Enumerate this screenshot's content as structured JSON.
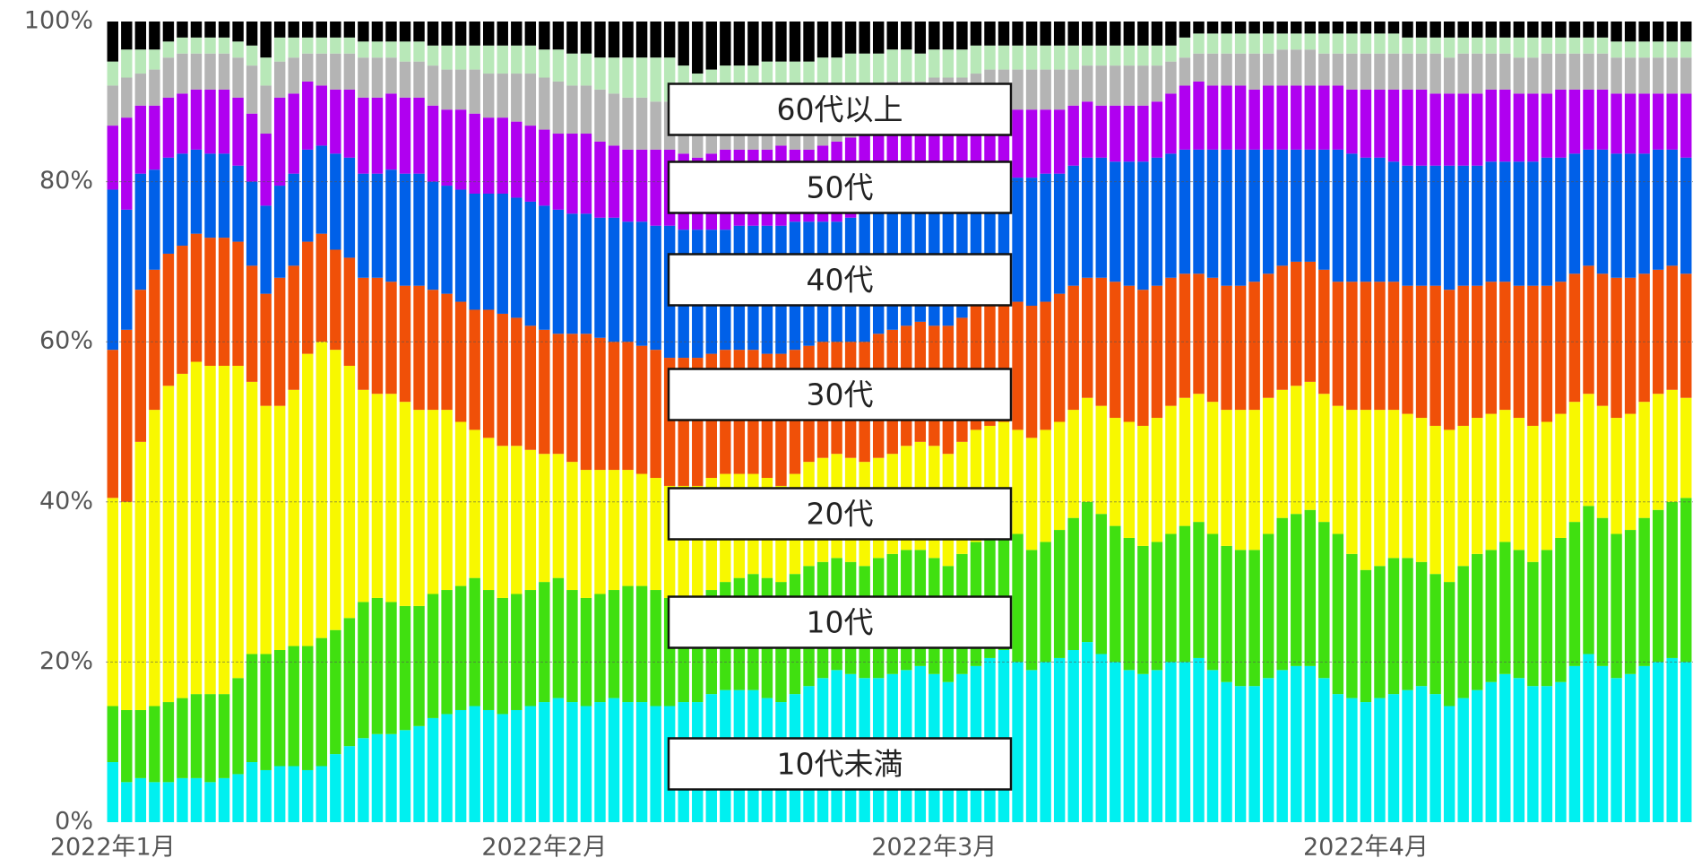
{
  "chart_data": {
    "type": "stacked_bar_100",
    "categories": [
      "2022年1月",
      null,
      null,
      null,
      null,
      null,
      null,
      null,
      null,
      null,
      null,
      null,
      null,
      null,
      null,
      null,
      null,
      null,
      null,
      null,
      null,
      null,
      null,
      null,
      null,
      null,
      null,
      null,
      null,
      null,
      null,
      "2022年2月",
      null,
      null,
      null,
      null,
      null,
      null,
      null,
      null,
      null,
      null,
      null,
      null,
      null,
      null,
      null,
      null,
      null,
      null,
      null,
      null,
      null,
      null,
      null,
      null,
      null,
      null,
      null,
      "2022年3月",
      null,
      null,
      null,
      null,
      null,
      null,
      null,
      null,
      null,
      null,
      null,
      null,
      null,
      null,
      null,
      null,
      null,
      null,
      null,
      null,
      null,
      null,
      null,
      null,
      null,
      null,
      null,
      null,
      null,
      null,
      "2022年4月",
      null,
      null,
      null,
      null,
      null,
      null,
      null,
      null,
      null,
      null,
      null,
      null,
      null,
      null,
      null,
      null,
      null,
      null,
      null,
      null,
      null,
      null,
      null
    ],
    "ylim": [
      0,
      100
    ],
    "yticks": [
      {
        "value": 0,
        "label": "0%"
      },
      {
        "value": 20,
        "label": "20%"
      },
      {
        "value": 40,
        "label": "40%"
      },
      {
        "value": 60,
        "label": "60%"
      },
      {
        "value": 80,
        "label": "80%"
      },
      {
        "value": 100,
        "label": "100%"
      }
    ],
    "grid": true,
    "series": [
      {
        "name": "10代未満",
        "color": "#00f0f0",
        "values": [
          7.5,
          5,
          5.5,
          5,
          5,
          5.5,
          5.5,
          5,
          5.5,
          6,
          7.5,
          6.5,
          7,
          7,
          6.5,
          7,
          8.5,
          9.5,
          10.5,
          11,
          11,
          11.5,
          12,
          13,
          13.5,
          14,
          14.5,
          14,
          13.5,
          14,
          14.5,
          15,
          15.5,
          15,
          14.5,
          15,
          15.5,
          15,
          15,
          14.5,
          14.5,
          15,
          15,
          16,
          16.5,
          16.5,
          16.5,
          15.5,
          15,
          16,
          17,
          18,
          19,
          18.5,
          18,
          18,
          18.5,
          19,
          19.5,
          18.5,
          17.5,
          18.5,
          19.5,
          20.5,
          21.5,
          20,
          19,
          20,
          20.5,
          21.5,
          22.5,
          21,
          20,
          19,
          18.5,
          19,
          20,
          20,
          20.5,
          19,
          17.5,
          17,
          17,
          18,
          19,
          19.5,
          19.5,
          18,
          16,
          15.5,
          15,
          15.5,
          16,
          16.5,
          17,
          16,
          14.5,
          15.5,
          16.5,
          17.5,
          18.5,
          18,
          17,
          17,
          17.5,
          19.5,
          21,
          19.5,
          18,
          18.5,
          19.5,
          20,
          20.5,
          20
        ]
      },
      {
        "name": "10代",
        "color": "#40e010",
        "values": [
          7,
          9,
          8.5,
          9.5,
          10,
          10,
          10.5,
          11,
          10.5,
          12,
          13.5,
          14.5,
          14.5,
          15,
          15.5,
          16,
          15.5,
          16,
          17,
          17,
          16.5,
          15.5,
          15,
          15.5,
          15.5,
          15.5,
          16,
          15,
          14.5,
          14.5,
          14.5,
          15,
          15,
          14,
          13.5,
          13.5,
          13.5,
          14.5,
          14.5,
          14.5,
          13.5,
          12.5,
          12,
          13,
          13.5,
          14,
          14.5,
          15,
          15,
          15,
          15,
          14.5,
          14,
          14,
          14,
          15,
          15,
          15,
          14.5,
          14.5,
          14.5,
          15,
          15.5,
          15.5,
          16,
          16,
          15,
          15,
          16,
          16.5,
          17.5,
          17.5,
          17,
          16.5,
          16,
          16,
          16,
          17,
          17,
          17,
          17,
          17,
          17,
          18,
          19,
          19,
          19.5,
          19.5,
          20,
          18,
          16.5,
          16.5,
          17,
          16.5,
          15.5,
          15,
          15.5,
          16.5,
          17,
          16.5,
          16.5,
          16,
          15.5,
          17,
          18,
          18,
          18.5,
          18.5,
          18,
          18,
          18.5,
          19,
          19.5,
          20.5
        ]
      },
      {
        "name": "20代",
        "color": "#f8f800",
        "values": [
          26,
          26,
          33.5,
          37,
          39.5,
          40.5,
          41.5,
          41,
          41,
          39,
          34,
          31,
          30.5,
          32,
          36.5,
          37,
          35,
          31.5,
          26.5,
          25.5,
          26,
          25.5,
          24.5,
          23,
          22.5,
          20.5,
          18.5,
          19,
          19,
          18.5,
          17.5,
          16,
          15.5,
          16,
          16,
          15.5,
          15,
          14.5,
          14,
          14,
          14,
          14.5,
          15,
          14,
          13.5,
          13,
          12.5,
          12.5,
          12,
          12.5,
          13,
          13,
          13,
          13,
          13,
          12.5,
          12.5,
          13,
          13.5,
          14,
          14,
          14,
          14,
          13.5,
          12.5,
          13,
          14,
          14,
          13.5,
          13.5,
          13,
          13.5,
          13.5,
          14.5,
          15,
          15.5,
          16,
          16,
          16,
          16.5,
          17,
          17.5,
          17.5,
          17,
          16,
          16,
          16,
          16,
          16,
          18,
          20,
          19.5,
          18.5,
          18,
          18,
          18.5,
          19,
          17.5,
          17,
          17,
          16.5,
          16.5,
          17,
          16,
          15.5,
          15,
          14,
          14,
          14.5,
          14.5,
          14.5,
          14.5,
          14,
          12.5
        ]
      },
      {
        "name": "30代",
        "color": "#f05008",
        "values": [
          18.5,
          21.5,
          19,
          17.5,
          16.5,
          16,
          16,
          16,
          16,
          15.5,
          14.5,
          14,
          16,
          15.5,
          14,
          13.5,
          12.5,
          13.5,
          14,
          14.5,
          14,
          14.5,
          15.5,
          15,
          14.5,
          15,
          15,
          16,
          16.5,
          16,
          15.5,
          15.5,
          15,
          16,
          17,
          16.5,
          16,
          16,
          16,
          16,
          16,
          16,
          16,
          15.5,
          15.5,
          15.5,
          15.5,
          15.5,
          16.5,
          15.5,
          14.5,
          14.5,
          14,
          14.5,
          15,
          15.5,
          15.5,
          15,
          15,
          15,
          16,
          15.5,
          15.5,
          15.5,
          15,
          16,
          16.5,
          16,
          16,
          15.5,
          15,
          16,
          17,
          17,
          17,
          16.5,
          16,
          15.5,
          15,
          15.5,
          15.5,
          15.5,
          16,
          15.5,
          15.5,
          15.5,
          15,
          15.5,
          15.5,
          16,
          16,
          16,
          16,
          16,
          16.5,
          17.5,
          17.5,
          17.5,
          16.5,
          16.5,
          16,
          16.5,
          17.5,
          17,
          16.5,
          16,
          16,
          16.5,
          17.5,
          17,
          16,
          15.5,
          15.5,
          15.5
        ]
      },
      {
        "name": "40代",
        "color": "#0060e8",
        "values": [
          20,
          15,
          14.5,
          12.5,
          12,
          11.5,
          10.5,
          10.5,
          10.5,
          9.5,
          10.5,
          11,
          11.5,
          11.5,
          11.5,
          11,
          12,
          12.5,
          13,
          13,
          14,
          14,
          14,
          13.5,
          13.5,
          14,
          14.5,
          14.5,
          15,
          15,
          15.5,
          15.5,
          15.5,
          15,
          15,
          15,
          15.5,
          15,
          15.5,
          15.5,
          16.5,
          16,
          16,
          15.5,
          15,
          15.5,
          15.5,
          16,
          16,
          16,
          15.5,
          15,
          15,
          15.5,
          16,
          16,
          16,
          16,
          15.5,
          16.5,
          17,
          16.5,
          15.5,
          15,
          15.5,
          15.5,
          16,
          16,
          15,
          15,
          15,
          15,
          15,
          15.5,
          16,
          16,
          15.5,
          15.5,
          15.5,
          16,
          17,
          17,
          16.5,
          15.5,
          14.5,
          14,
          14,
          15,
          16.5,
          16,
          15.5,
          15.5,
          15,
          15,
          15,
          15,
          15.5,
          15,
          15,
          15,
          15,
          15.5,
          15.5,
          16,
          15.5,
          15,
          14.5,
          15.5,
          15.5,
          15.5,
          15,
          15,
          14.5,
          14.5
        ]
      },
      {
        "name": "50代",
        "color": "#b000f0",
        "values": [
          8,
          11.5,
          8.5,
          8,
          7.5,
          7.5,
          7.5,
          8,
          8,
          8.5,
          8.5,
          9,
          11,
          10,
          8.5,
          7.5,
          8,
          8.5,
          9.5,
          9.5,
          9.5,
          9.5,
          9.5,
          9.5,
          9.5,
          10,
          10,
          9.5,
          9.5,
          9.5,
          9.5,
          9.5,
          9.5,
          10,
          10,
          9.5,
          9,
          9,
          9,
          9.5,
          9.5,
          9.5,
          9,
          9.5,
          10,
          9.5,
          9.5,
          9.5,
          10,
          9,
          9,
          9.5,
          10,
          10,
          10,
          9.5,
          9,
          8.5,
          8.5,
          8.5,
          8.5,
          8.5,
          8.5,
          9,
          8.5,
          8.5,
          8.5,
          8,
          8,
          7.5,
          7,
          6.5,
          7,
          7,
          7,
          7,
          7.5,
          8,
          8.5,
          8,
          8,
          8,
          7.5,
          8,
          8,
          8,
          8,
          8,
          8,
          8,
          8.5,
          8.5,
          9,
          9.5,
          9.5,
          9,
          9,
          9,
          9,
          9,
          9,
          8.5,
          8.5,
          8,
          8.5,
          8,
          7.5,
          7.5,
          7.5,
          7.5,
          7.5,
          7,
          7,
          8
        ]
      },
      {
        "name": "60代以上",
        "color": "#b4b4b4",
        "values": [
          5,
          5,
          4,
          4.5,
          5,
          5,
          4.5,
          4.5,
          4.5,
          5,
          6,
          6,
          4.5,
          4.5,
          3.5,
          4,
          4.5,
          4.5,
          5,
          5,
          4.5,
          4.5,
          4.5,
          5,
          5,
          5,
          5.5,
          5.5,
          5.5,
          6,
          6.5,
          6.5,
          6.5,
          6,
          6,
          6.5,
          6.5,
          6.5,
          6.5,
          6,
          6,
          6,
          6,
          6,
          6,
          6,
          6,
          6,
          6,
          6.5,
          6.5,
          6.5,
          6,
          6,
          6,
          5.5,
          6,
          6,
          6,
          6,
          5.5,
          5,
          5,
          5,
          5,
          5,
          5,
          5,
          5,
          4.5,
          4.5,
          5,
          5,
          5,
          5,
          4.5,
          4,
          3.5,
          3.5,
          4,
          4,
          4,
          4.5,
          4,
          4.5,
          4.5,
          4.5,
          4,
          4,
          4.5,
          4.5,
          4.5,
          4.5,
          4.5,
          4.5,
          5,
          4.5,
          5,
          5,
          4.5,
          4.5,
          4.5,
          4.5,
          5,
          4.5,
          4.5,
          4.5,
          4.5,
          4.5,
          4.5,
          4.5,
          4.5,
          4.5,
          4.5
        ]
      },
      {
        "name": null,
        "color": "#b8e8b8",
        "values": [
          3,
          3.5,
          3,
          2.5,
          2,
          2,
          2,
          2,
          2,
          2,
          2.5,
          3.5,
          3,
          2.5,
          2,
          2,
          2,
          2,
          2,
          2,
          2,
          2.5,
          2.5,
          2.5,
          3,
          3,
          3,
          3.5,
          3.5,
          3.5,
          3.5,
          3.5,
          4,
          4,
          4,
          4,
          4.5,
          5,
          5,
          5.5,
          5.5,
          5,
          4.5,
          4.5,
          4.5,
          4.5,
          4.5,
          5,
          4.5,
          4.5,
          4.5,
          4.5,
          4.5,
          4.5,
          4,
          4,
          4,
          4,
          3.5,
          3.5,
          3.5,
          3.5,
          3.5,
          3,
          3,
          3,
          3,
          3,
          3,
          3,
          2.5,
          2.5,
          2.5,
          2.5,
          2.5,
          2.5,
          2,
          2.5,
          2.5,
          2.5,
          2.5,
          2.5,
          2.5,
          2.5,
          2,
          2,
          2,
          2.5,
          2.5,
          2.5,
          2.5,
          2.5,
          2.5,
          2,
          2,
          2,
          2.5,
          2,
          2,
          2,
          2,
          2.5,
          2.5,
          2,
          2,
          2,
          2,
          2,
          2,
          2,
          2,
          2,
          2,
          2
        ]
      },
      {
        "name": null,
        "color": "#000000",
        "values": [
          5,
          3.5,
          3.5,
          3.5,
          2.5,
          2,
          2,
          2,
          2,
          2.5,
          3,
          4.5,
          2,
          2,
          2,
          2,
          2,
          2,
          2.5,
          2.5,
          2.5,
          2.5,
          2.5,
          3,
          3,
          3,
          3,
          3,
          3,
          3,
          3,
          3.5,
          3.5,
          4,
          4,
          4.5,
          4.5,
          4.5,
          4.5,
          4.5,
          4.5,
          5.5,
          6.5,
          6,
          5.5,
          5.5,
          5.5,
          5,
          5,
          5,
          5,
          4.5,
          4.5,
          4,
          4,
          4,
          3.5,
          3.5,
          4,
          3.5,
          3.5,
          3.5,
          3,
          3,
          3,
          3,
          3,
          3,
          3,
          3,
          3,
          3,
          3,
          3,
          3,
          3,
          3,
          2,
          1.5,
          1.5,
          1.5,
          1.5,
          1.5,
          1.5,
          1.5,
          1.5,
          1.5,
          1.5,
          1.5,
          1.5,
          1.5,
          1.5,
          1.5,
          2,
          2,
          2,
          2,
          2,
          2,
          2,
          2,
          2,
          2,
          2,
          2,
          2,
          2,
          2,
          2.5,
          2.5,
          2.5,
          2.5,
          2.5,
          2.5
        ]
      }
    ]
  }
}
